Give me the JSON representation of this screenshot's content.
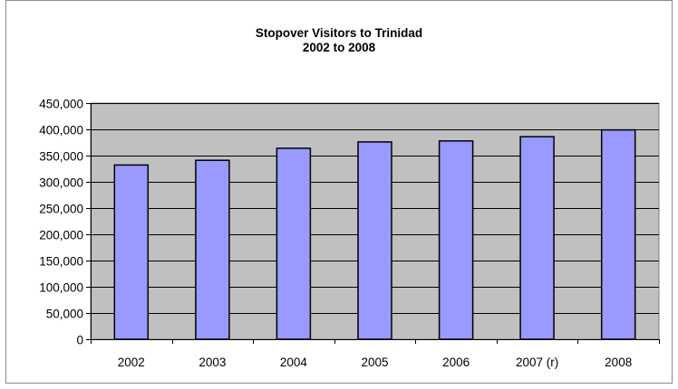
{
  "chart_data": {
    "type": "bar",
    "title": "Stopover Visitors to Trinidad",
    "subtitle": "2002 to 2008",
    "xlabel": "",
    "ylabel": "",
    "categories": [
      "2002",
      "2003",
      "2004",
      "2005",
      "2006",
      "2007 (r)",
      "2008"
    ],
    "values": [
      332000,
      341000,
      364000,
      376000,
      378000,
      386000,
      399000
    ],
    "ylim": [
      0,
      450000
    ],
    "yticks": [
      0,
      50000,
      100000,
      150000,
      200000,
      250000,
      300000,
      350000,
      400000,
      450000
    ],
    "ytick_labels": [
      "0",
      "50,000",
      "100,000",
      "150,000",
      "200,000",
      "250,000",
      "300,000",
      "350,000",
      "400,000",
      "450,000"
    ],
    "grid": true,
    "legend": "none",
    "colors": {
      "plot_background": "#c0c0c0",
      "bar_fill": "#9999ff",
      "bar_stroke": "#000000",
      "gridline": "#000000"
    }
  }
}
